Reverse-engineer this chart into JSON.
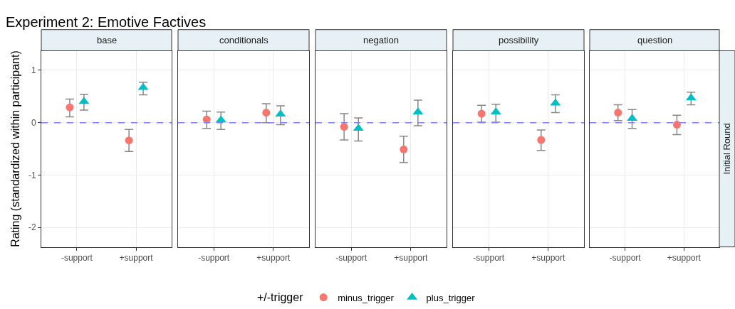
{
  "chart_data": [
    {
      "type": "scatter",
      "title": "base",
      "ylabel": "Rating (standardized within participant)",
      "legend_title": "+/-trigger",
      "legend": "bottom",
      "annotations": [
        "Experiment 2: Emotive Factives"
      ],
      "categories": [
        "-support",
        "+support"
      ],
      "ylim": [
        -2.37,
        1.37
      ],
      "yticks": [
        -2,
        -1,
        0,
        1
      ],
      "grid": true,
      "ref_lines": [
        {
          "axis": "y",
          "value": 0,
          "color": "#8080ff",
          "line_style": "dashed"
        }
      ],
      "series": [
        {
          "name": "minus_trigger",
          "color": "#f8766d",
          "marker": "circle",
          "values": [
            0.29,
            -0.34
          ],
          "errors": [
            [
              0.11,
              0.45
            ],
            [
              -0.55,
              -0.13
            ]
          ]
        },
        {
          "name": "plus_trigger",
          "color": "#00bfc4",
          "marker": "triangle",
          "values": [
            0.4,
            0.67
          ],
          "errors": [
            [
              0.24,
              0.54
            ],
            [
              0.53,
              0.77
            ]
          ]
        }
      ]
    },
    {
      "type": "scatter",
      "title": "conditionals",
      "tick_labels": "x",
      "categories": [
        "-support",
        "+support"
      ],
      "ylim": [
        -2.37,
        1.37
      ],
      "yticks": [
        -2,
        -1,
        0,
        1
      ],
      "grid": true,
      "ref_lines": [
        {
          "axis": "y",
          "value": 0,
          "color": "#8080ff",
          "line_style": "dashed"
        }
      ],
      "series": [
        {
          "color": "#f8766d",
          "marker": "circle",
          "values": [
            0.06,
            0.19
          ],
          "errors": [
            [
              -0.11,
              0.22
            ],
            [
              0.0,
              0.36
            ]
          ]
        },
        {
          "color": "#00bfc4",
          "marker": "triangle",
          "values": [
            0.05,
            0.16
          ],
          "errors": [
            [
              -0.13,
              0.2
            ],
            [
              -0.04,
              0.32
            ]
          ]
        }
      ]
    },
    {
      "type": "scatter",
      "title": "negation",
      "tick_labels": "x",
      "categories": [
        "-support",
        "+support"
      ],
      "ylim": [
        -2.37,
        1.37
      ],
      "yticks": [
        -2,
        -1,
        0,
        1
      ],
      "grid": true,
      "ref_lines": [
        {
          "axis": "y",
          "value": 0,
          "color": "#8080ff",
          "line_style": "dashed"
        }
      ],
      "series": [
        {
          "color": "#f8766d",
          "marker": "circle",
          "values": [
            -0.08,
            -0.51
          ],
          "errors": [
            [
              -0.33,
              0.17
            ],
            [
              -0.76,
              -0.26
            ]
          ]
        },
        {
          "color": "#00bfc4",
          "marker": "triangle",
          "values": [
            -0.11,
            0.2
          ],
          "errors": [
            [
              -0.35,
              0.09
            ],
            [
              -0.06,
              0.43
            ]
          ]
        }
      ]
    },
    {
      "type": "scatter",
      "title": "possibility",
      "tick_labels": "x",
      "categories": [
        "-support",
        "+support"
      ],
      "ylim": [
        -2.37,
        1.37
      ],
      "yticks": [
        -2,
        -1,
        0,
        1
      ],
      "grid": true,
      "ref_lines": [
        {
          "axis": "y",
          "value": 0,
          "color": "#8080ff",
          "line_style": "dashed"
        }
      ],
      "series": [
        {
          "color": "#f8766d",
          "marker": "circle",
          "values": [
            0.17,
            -0.33
          ],
          "errors": [
            [
              0.01,
              0.33
            ],
            [
              -0.53,
              -0.14
            ]
          ]
        },
        {
          "color": "#00bfc4",
          "marker": "triangle",
          "values": [
            0.2,
            0.37
          ],
          "errors": [
            [
              0.01,
              0.35
            ],
            [
              0.19,
              0.53
            ]
          ]
        }
      ]
    },
    {
      "type": "scatter",
      "title": "question",
      "tick_labels": "x",
      "annotations": [
        "Initial Round"
      ],
      "categories": [
        "-support",
        "+support"
      ],
      "ylim": [
        -2.37,
        1.37
      ],
      "yticks": [
        -2,
        -1,
        0,
        1
      ],
      "grid": true,
      "ref_lines": [
        {
          "axis": "y",
          "value": 0,
          "color": "#8080ff",
          "line_style": "dashed"
        }
      ],
      "series": [
        {
          "color": "#f8766d",
          "marker": "circle",
          "values": [
            0.19,
            -0.04
          ],
          "errors": [
            [
              0.04,
              0.34
            ],
            [
              -0.23,
              0.14
            ]
          ]
        },
        {
          "color": "#00bfc4",
          "marker": "triangle",
          "values": [
            0.08,
            0.47
          ],
          "errors": [
            [
              -0.11,
              0.25
            ],
            [
              0.34,
              0.58
            ]
          ]
        }
      ]
    }
  ]
}
